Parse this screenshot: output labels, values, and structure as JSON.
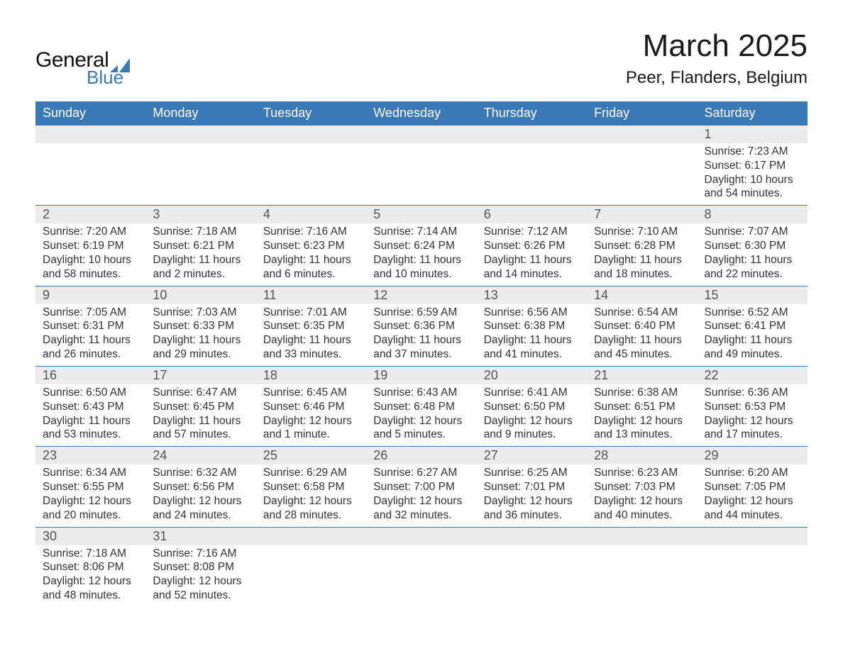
{
  "brand": {
    "word1": "General",
    "word2": "Blue",
    "mark_color": "#3a78b8"
  },
  "title": "March 2025",
  "location": "Peer, Flanders, Belgium",
  "colors": {
    "header_bg": "#3a78b8",
    "header_text": "#ffffff",
    "daynum_bg": "#ececec",
    "row_border": "#3a78b8",
    "body_text": "#333333"
  },
  "day_headers": [
    "Sunday",
    "Monday",
    "Tuesday",
    "Wednesday",
    "Thursday",
    "Friday",
    "Saturday"
  ],
  "weeks": [
    [
      null,
      null,
      null,
      null,
      null,
      null,
      {
        "n": "1",
        "sunrise": "Sunrise: 7:23 AM",
        "sunset": "Sunset: 6:17 PM",
        "dl1": "Daylight: 10 hours",
        "dl2": "and 54 minutes."
      }
    ],
    [
      {
        "n": "2",
        "sunrise": "Sunrise: 7:20 AM",
        "sunset": "Sunset: 6:19 PM",
        "dl1": "Daylight: 10 hours",
        "dl2": "and 58 minutes."
      },
      {
        "n": "3",
        "sunrise": "Sunrise: 7:18 AM",
        "sunset": "Sunset: 6:21 PM",
        "dl1": "Daylight: 11 hours",
        "dl2": "and 2 minutes."
      },
      {
        "n": "4",
        "sunrise": "Sunrise: 7:16 AM",
        "sunset": "Sunset: 6:23 PM",
        "dl1": "Daylight: 11 hours",
        "dl2": "and 6 minutes."
      },
      {
        "n": "5",
        "sunrise": "Sunrise: 7:14 AM",
        "sunset": "Sunset: 6:24 PM",
        "dl1": "Daylight: 11 hours",
        "dl2": "and 10 minutes."
      },
      {
        "n": "6",
        "sunrise": "Sunrise: 7:12 AM",
        "sunset": "Sunset: 6:26 PM",
        "dl1": "Daylight: 11 hours",
        "dl2": "and 14 minutes."
      },
      {
        "n": "7",
        "sunrise": "Sunrise: 7:10 AM",
        "sunset": "Sunset: 6:28 PM",
        "dl1": "Daylight: 11 hours",
        "dl2": "and 18 minutes."
      },
      {
        "n": "8",
        "sunrise": "Sunrise: 7:07 AM",
        "sunset": "Sunset: 6:30 PM",
        "dl1": "Daylight: 11 hours",
        "dl2": "and 22 minutes."
      }
    ],
    [
      {
        "n": "9",
        "sunrise": "Sunrise: 7:05 AM",
        "sunset": "Sunset: 6:31 PM",
        "dl1": "Daylight: 11 hours",
        "dl2": "and 26 minutes."
      },
      {
        "n": "10",
        "sunrise": "Sunrise: 7:03 AM",
        "sunset": "Sunset: 6:33 PM",
        "dl1": "Daylight: 11 hours",
        "dl2": "and 29 minutes."
      },
      {
        "n": "11",
        "sunrise": "Sunrise: 7:01 AM",
        "sunset": "Sunset: 6:35 PM",
        "dl1": "Daylight: 11 hours",
        "dl2": "and 33 minutes."
      },
      {
        "n": "12",
        "sunrise": "Sunrise: 6:59 AM",
        "sunset": "Sunset: 6:36 PM",
        "dl1": "Daylight: 11 hours",
        "dl2": "and 37 minutes."
      },
      {
        "n": "13",
        "sunrise": "Sunrise: 6:56 AM",
        "sunset": "Sunset: 6:38 PM",
        "dl1": "Daylight: 11 hours",
        "dl2": "and 41 minutes."
      },
      {
        "n": "14",
        "sunrise": "Sunrise: 6:54 AM",
        "sunset": "Sunset: 6:40 PM",
        "dl1": "Daylight: 11 hours",
        "dl2": "and 45 minutes."
      },
      {
        "n": "15",
        "sunrise": "Sunrise: 6:52 AM",
        "sunset": "Sunset: 6:41 PM",
        "dl1": "Daylight: 11 hours",
        "dl2": "and 49 minutes."
      }
    ],
    [
      {
        "n": "16",
        "sunrise": "Sunrise: 6:50 AM",
        "sunset": "Sunset: 6:43 PM",
        "dl1": "Daylight: 11 hours",
        "dl2": "and 53 minutes."
      },
      {
        "n": "17",
        "sunrise": "Sunrise: 6:47 AM",
        "sunset": "Sunset: 6:45 PM",
        "dl1": "Daylight: 11 hours",
        "dl2": "and 57 minutes."
      },
      {
        "n": "18",
        "sunrise": "Sunrise: 6:45 AM",
        "sunset": "Sunset: 6:46 PM",
        "dl1": "Daylight: 12 hours",
        "dl2": "and 1 minute."
      },
      {
        "n": "19",
        "sunrise": "Sunrise: 6:43 AM",
        "sunset": "Sunset: 6:48 PM",
        "dl1": "Daylight: 12 hours",
        "dl2": "and 5 minutes."
      },
      {
        "n": "20",
        "sunrise": "Sunrise: 6:41 AM",
        "sunset": "Sunset: 6:50 PM",
        "dl1": "Daylight: 12 hours",
        "dl2": "and 9 minutes."
      },
      {
        "n": "21",
        "sunrise": "Sunrise: 6:38 AM",
        "sunset": "Sunset: 6:51 PM",
        "dl1": "Daylight: 12 hours",
        "dl2": "and 13 minutes."
      },
      {
        "n": "22",
        "sunrise": "Sunrise: 6:36 AM",
        "sunset": "Sunset: 6:53 PM",
        "dl1": "Daylight: 12 hours",
        "dl2": "and 17 minutes."
      }
    ],
    [
      {
        "n": "23",
        "sunrise": "Sunrise: 6:34 AM",
        "sunset": "Sunset: 6:55 PM",
        "dl1": "Daylight: 12 hours",
        "dl2": "and 20 minutes."
      },
      {
        "n": "24",
        "sunrise": "Sunrise: 6:32 AM",
        "sunset": "Sunset: 6:56 PM",
        "dl1": "Daylight: 12 hours",
        "dl2": "and 24 minutes."
      },
      {
        "n": "25",
        "sunrise": "Sunrise: 6:29 AM",
        "sunset": "Sunset: 6:58 PM",
        "dl1": "Daylight: 12 hours",
        "dl2": "and 28 minutes."
      },
      {
        "n": "26",
        "sunrise": "Sunrise: 6:27 AM",
        "sunset": "Sunset: 7:00 PM",
        "dl1": "Daylight: 12 hours",
        "dl2": "and 32 minutes."
      },
      {
        "n": "27",
        "sunrise": "Sunrise: 6:25 AM",
        "sunset": "Sunset: 7:01 PM",
        "dl1": "Daylight: 12 hours",
        "dl2": "and 36 minutes."
      },
      {
        "n": "28",
        "sunrise": "Sunrise: 6:23 AM",
        "sunset": "Sunset: 7:03 PM",
        "dl1": "Daylight: 12 hours",
        "dl2": "and 40 minutes."
      },
      {
        "n": "29",
        "sunrise": "Sunrise: 6:20 AM",
        "sunset": "Sunset: 7:05 PM",
        "dl1": "Daylight: 12 hours",
        "dl2": "and 44 minutes."
      }
    ],
    [
      {
        "n": "30",
        "sunrise": "Sunrise: 7:18 AM",
        "sunset": "Sunset: 8:06 PM",
        "dl1": "Daylight: 12 hours",
        "dl2": "and 48 minutes."
      },
      {
        "n": "31",
        "sunrise": "Sunrise: 7:16 AM",
        "sunset": "Sunset: 8:08 PM",
        "dl1": "Daylight: 12 hours",
        "dl2": "and 52 minutes."
      },
      null,
      null,
      null,
      null,
      null
    ]
  ]
}
